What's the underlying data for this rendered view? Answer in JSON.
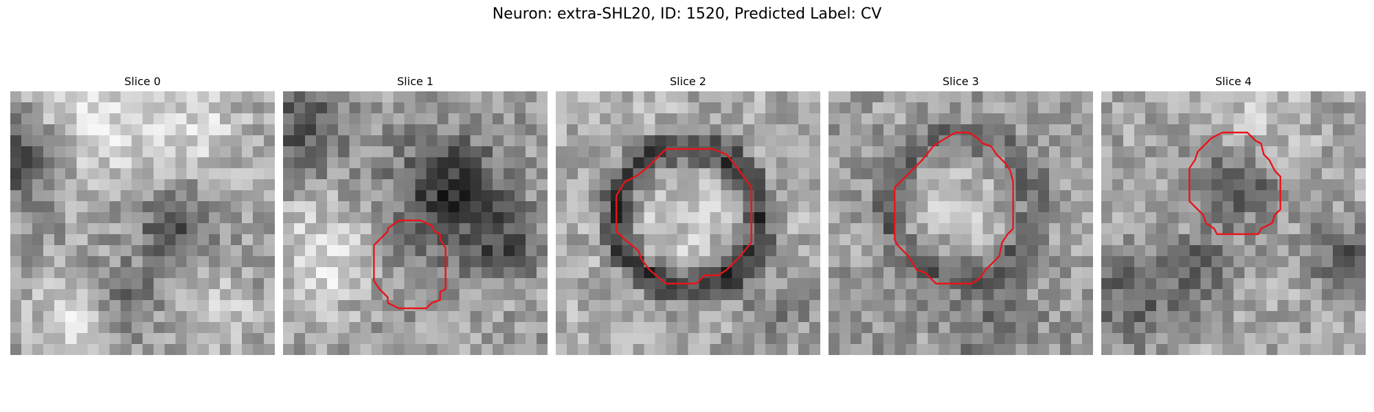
{
  "figure": {
    "title": "Neuron: extra-SHL20, ID: 1520, Predicted Label: CV",
    "outline_color": "#e8141a"
  },
  "slices": [
    {
      "title": "Slice 0",
      "has_outline": false
    },
    {
      "title": "Slice 1",
      "has_outline": true
    },
    {
      "title": "Slice 2",
      "has_outline": true
    },
    {
      "title": "Slice 3",
      "has_outline": true
    },
    {
      "title": "Slice 4",
      "has_outline": true
    }
  ]
}
